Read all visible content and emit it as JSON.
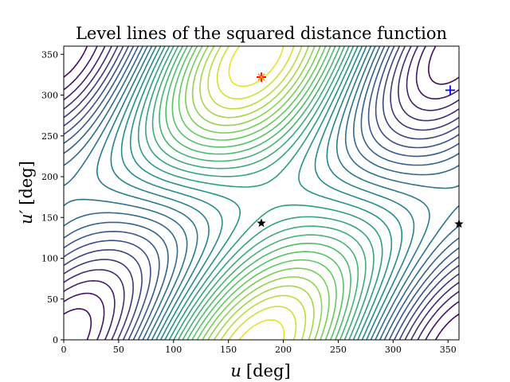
{
  "chart_data": {
    "type": "contour",
    "title": "Level lines of the squared distance function",
    "xlabel": "u [deg]",
    "ylabel": "u′ [deg]",
    "x_label_symbol": "u",
    "y_label_symbol": "u′",
    "label_unit": "[deg]",
    "xlim": [
      0,
      360
    ],
    "ylim": [
      0,
      360
    ],
    "xticks": [
      "0",
      "50",
      "100",
      "150",
      "200",
      "250",
      "300",
      "350"
    ],
    "yticks": [
      "0",
      "50",
      "100",
      "150",
      "200",
      "250",
      "300",
      "350"
    ],
    "xtick_values": [
      0,
      50,
      100,
      150,
      200,
      250,
      300,
      350
    ],
    "ytick_values": [
      0,
      50,
      100,
      150,
      200,
      250,
      300,
      350
    ],
    "colormap": [
      "#440154",
      "#3b528b",
      "#21918c",
      "#5ec962",
      "#fde725"
    ],
    "contour_levels": 28,
    "grid": false,
    "markers": [
      {
        "name": "red-plus",
        "symbol": "+",
        "color": "#ff0000",
        "x": 180,
        "y": 322
      },
      {
        "name": "orange-x",
        "symbol": "x",
        "color": "#ff8c00",
        "x": 180,
        "y": 322
      },
      {
        "name": "blue-plus",
        "symbol": "+",
        "color": "#0000ff",
        "x": 352,
        "y": 306
      },
      {
        "name": "black-star-1",
        "symbol": "*",
        "color": "#000000",
        "x": 180,
        "y": 143
      },
      {
        "name": "black-star-2",
        "symbol": "*",
        "color": "#000000",
        "x": 360,
        "y": 142
      }
    ]
  }
}
